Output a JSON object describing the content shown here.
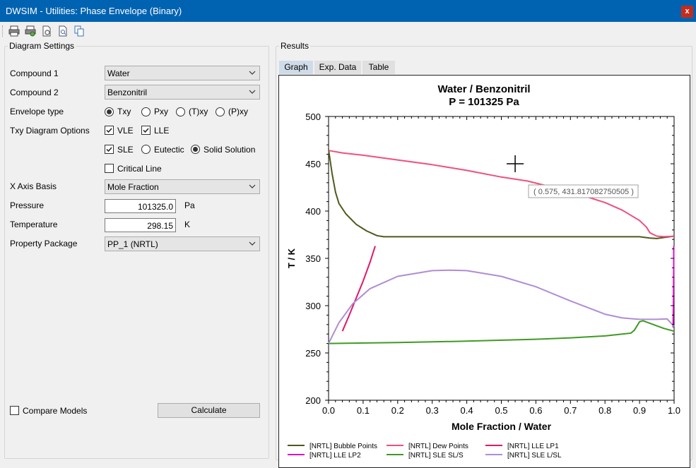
{
  "window": {
    "title": "DWSIM - Utilities: Phase Envelope (Binary)",
    "close_label": "x"
  },
  "toolbar": {
    "icons": [
      "print-icon",
      "print-preview-icon",
      "page-setup-icon",
      "zoom-icon",
      "copy-icon"
    ]
  },
  "settings": {
    "legend": "Diagram Settings",
    "compound1_label": "Compound 1",
    "compound1_value": "Water",
    "compound2_label": "Compound 2",
    "compound2_value": "Benzonitril",
    "envelope_label": "Envelope type",
    "envelope_options": [
      "Txy",
      "Pxy",
      "(T)xy",
      "(P)xy"
    ],
    "envelope_selected": "Txy",
    "txy_options_label": "Txy Diagram Options",
    "vle_label": "VLE",
    "vle_checked": true,
    "lle_label": "LLE",
    "lle_checked": true,
    "sle_label": "SLE",
    "sle_checked": true,
    "eutectic_label": "Eutectic",
    "solid_solution_label": "Solid Solution",
    "sle_mode_selected": "Solid Solution",
    "critical_line_label": "Critical Line",
    "critical_line_checked": false,
    "xaxis_label": "X Axis Basis",
    "xaxis_value": "Mole Fraction",
    "pressure_label": "Pressure",
    "pressure_value": "101325.0",
    "pressure_unit": "Pa",
    "temperature_label": "Temperature",
    "temperature_value": "298.15",
    "temperature_unit": "K",
    "package_label": "Property Package",
    "package_value": "PP_1 (NRTL)",
    "compare_label": "Compare Models",
    "compare_checked": false,
    "calculate_label": "Calculate"
  },
  "results": {
    "legend": "Results",
    "tabs": [
      "Graph",
      "Exp. Data",
      "Table"
    ],
    "active_tab": "Graph",
    "tooltip": "( 0.575, 431.817082750505 )"
  },
  "chart_data": {
    "type": "line",
    "title": "Water / Benzonitril",
    "subtitle": "P = 101325 Pa",
    "xlabel": "Mole Fraction / Water",
    "ylabel": "T / K",
    "xlim": [
      0.0,
      1.0
    ],
    "ylim": [
      200,
      500
    ],
    "xticks": [
      "0.0",
      "0.1",
      "0.2",
      "0.3",
      "0.4",
      "0.5",
      "0.6",
      "0.7",
      "0.8",
      "0.9",
      "1.0"
    ],
    "yticks": [
      "200",
      "250",
      "300",
      "350",
      "400",
      "450",
      "500"
    ],
    "grid": false,
    "legend_position": "bottom",
    "series": [
      {
        "name": "[NRTL] Bubble Points",
        "color": "#4f5a1c",
        "x": [
          0.0,
          0.01,
          0.02,
          0.03,
          0.05,
          0.08,
          0.11,
          0.14,
          0.16,
          0.3,
          0.5,
          0.7,
          0.9,
          0.93,
          0.95,
          0.97,
          1.0
        ],
        "y": [
          465,
          440,
          420,
          408,
          397,
          386,
          379,
          374,
          372.8,
          372.8,
          372.8,
          372.8,
          372.8,
          371.5,
          371,
          372,
          373.5
        ]
      },
      {
        "name": "[NRTL] Dew Points",
        "color": "#ef4f7f",
        "x": [
          0.0,
          0.04,
          0.1,
          0.2,
          0.3,
          0.4,
          0.5,
          0.575,
          0.65,
          0.7,
          0.8,
          0.85,
          0.9,
          0.92,
          0.93,
          0.95,
          0.97,
          1.0
        ],
        "y": [
          464,
          461.5,
          459,
          454,
          449,
          443,
          436,
          431.8,
          425,
          420.5,
          409,
          401,
          390,
          383,
          377,
          373.5,
          373,
          373.3
        ]
      },
      {
        "name": "[NRTL] LLE LP1",
        "color": "#e0186a",
        "x": [
          0.04,
          0.06,
          0.08,
          0.1,
          0.12,
          0.135
        ],
        "y": [
          273,
          290,
          308,
          326,
          346,
          363
        ]
      },
      {
        "name": "[NRTL] LLE LP2",
        "color": "#dd11c8",
        "x": [
          0.997,
          0.998,
          0.999,
          0.999
        ],
        "y": [
          277,
          300,
          340,
          363
        ]
      },
      {
        "name": "[NRTL] SLE SL/S",
        "color": "#3f9a24",
        "x": [
          0.0,
          0.2,
          0.4,
          0.6,
          0.7,
          0.8,
          0.875,
          0.885,
          0.9,
          0.91,
          0.94,
          0.97,
          1.0
        ],
        "y": [
          260,
          261,
          262.5,
          264.5,
          266,
          268,
          271,
          274,
          283,
          284,
          280,
          276,
          273
        ]
      },
      {
        "name": "[NRTL] SLE L/SL",
        "color": "#b08dd2",
        "x": [
          0.0,
          0.03,
          0.07,
          0.12,
          0.2,
          0.3,
          0.35,
          0.4,
          0.5,
          0.6,
          0.7,
          0.8,
          0.85,
          0.9,
          0.95,
          0.98,
          1.0
        ],
        "y": [
          260,
          282,
          302,
          318,
          331,
          337,
          337.5,
          337,
          331,
          320,
          305,
          291,
          287,
          285.5,
          285.5,
          286,
          278
        ]
      }
    ]
  }
}
